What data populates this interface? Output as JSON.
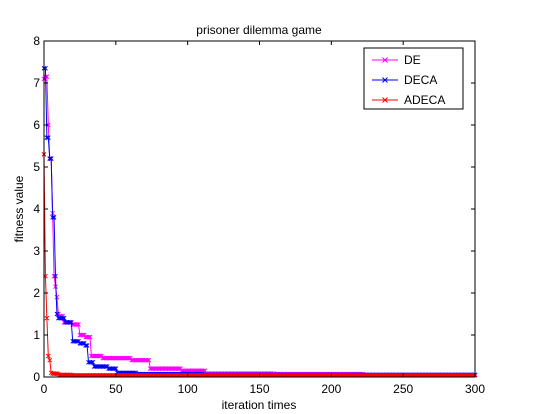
{
  "chart_data": {
    "type": "line",
    "title": "prisoner dilemma game",
    "xlabel": "iteration times",
    "ylabel": "fitness value",
    "xlim": [
      0,
      300
    ],
    "ylim": [
      0,
      8
    ],
    "xticks": [
      "0",
      "50",
      "100",
      "150",
      "200",
      "250",
      "300"
    ],
    "yticks": [
      "0",
      "1",
      "2",
      "3",
      "4",
      "5",
      "6",
      "7",
      "8"
    ],
    "grid": false,
    "legend_position": "top-right",
    "marker": "x",
    "series": [
      {
        "name": "DE",
        "color": "#ff00ff",
        "points": [
          [
            0,
            7.1
          ],
          [
            1,
            7.15
          ],
          [
            2,
            7.15
          ],
          [
            3,
            6.0
          ],
          [
            4,
            5.2
          ],
          [
            5,
            5.2
          ],
          [
            6,
            3.9
          ],
          [
            7,
            2.4
          ],
          [
            8,
            2.15
          ],
          [
            9,
            1.9
          ],
          [
            10,
            1.5
          ],
          [
            11,
            1.45
          ],
          [
            12,
            1.45
          ],
          [
            13,
            1.45
          ],
          [
            14,
            1.3
          ],
          [
            15,
            1.3
          ],
          [
            18,
            1.3
          ],
          [
            20,
            1.25
          ],
          [
            23,
            1.25
          ],
          [
            24,
            1.25
          ],
          [
            25,
            1.0
          ],
          [
            28,
            1.0
          ],
          [
            29,
            0.95
          ],
          [
            32,
            0.95
          ],
          [
            33,
            0.5
          ],
          [
            40,
            0.5
          ],
          [
            41,
            0.45
          ],
          [
            60,
            0.45
          ],
          [
            61,
            0.4
          ],
          [
            73,
            0.4
          ],
          [
            74,
            0.2
          ],
          [
            95,
            0.2
          ],
          [
            96,
            0.15
          ],
          [
            112,
            0.15
          ],
          [
            113,
            0.08
          ],
          [
            160,
            0.08
          ],
          [
            161,
            0.07
          ],
          [
            222,
            0.07
          ],
          [
            223,
            0.05
          ],
          [
            300,
            0.05
          ]
        ]
      },
      {
        "name": "DECA",
        "color": "#0000ff",
        "points": [
          [
            0,
            7.35
          ],
          [
            1,
            7.35
          ],
          [
            2,
            5.7
          ],
          [
            3,
            5.7
          ],
          [
            4,
            5.2
          ],
          [
            5,
            5.2
          ],
          [
            6,
            3.8
          ],
          [
            7,
            3.8
          ],
          [
            8,
            2.4
          ],
          [
            9,
            1.5
          ],
          [
            10,
            1.4
          ],
          [
            14,
            1.4
          ],
          [
            15,
            1.3
          ],
          [
            19,
            1.3
          ],
          [
            20,
            0.85
          ],
          [
            24,
            0.85
          ],
          [
            25,
            0.8
          ],
          [
            28,
            0.8
          ],
          [
            29,
            0.75
          ],
          [
            30,
            0.75
          ],
          [
            31,
            0.35
          ],
          [
            34,
            0.35
          ],
          [
            35,
            0.25
          ],
          [
            44,
            0.25
          ],
          [
            45,
            0.2
          ],
          [
            50,
            0.2
          ],
          [
            51,
            0.1
          ],
          [
            64,
            0.1
          ],
          [
            65,
            0.07
          ],
          [
            110,
            0.07
          ],
          [
            111,
            0.05
          ],
          [
            300,
            0.05
          ]
        ]
      },
      {
        "name": "ADECA",
        "color": "#ff0000",
        "points": [
          [
            0,
            5.3
          ],
          [
            1,
            2.4
          ],
          [
            2,
            1.4
          ],
          [
            3,
            0.5
          ],
          [
            4,
            0.4
          ],
          [
            5,
            0.1
          ],
          [
            6,
            0.08
          ],
          [
            10,
            0.07
          ],
          [
            11,
            0.05
          ],
          [
            20,
            0.04
          ],
          [
            300,
            0.04
          ]
        ]
      }
    ]
  }
}
